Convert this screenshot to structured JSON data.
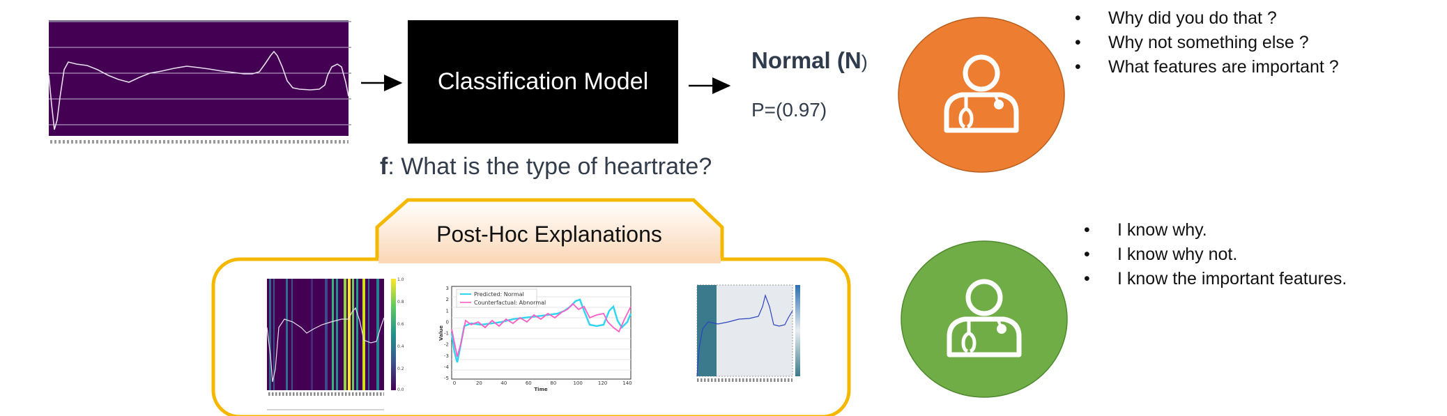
{
  "model": {
    "label": "Classification Model"
  },
  "prediction": {
    "class_name": "Normal (N",
    "class_close": ")",
    "probability": "P=(0.97)"
  },
  "question": {
    "prefix": "f",
    "text": ": What is the type of heartrate?"
  },
  "doctor_before": {
    "questions": [
      "Why did you do that ?",
      "Why not something else ?",
      "What features are important ?"
    ],
    "color": "#ed7d31"
  },
  "doctor_after": {
    "statements": [
      "I know why.",
      "I know why not.",
      "I know the important features."
    ],
    "color": "#70ad47"
  },
  "explanations": {
    "title": "Post-Hoc Explanations",
    "border_color": "#f5b800",
    "counterfactual_legend": [
      "Predicted: Normal",
      "Counterfactual: Abnormal"
    ],
    "counterfactual_xlabel": "Time",
    "counterfactual_ylabel": "Value",
    "counterfactual_xticks": [
      "0",
      "20",
      "40",
      "60",
      "80",
      "100",
      "120",
      "140"
    ],
    "counterfactual_yticks": [
      "3",
      "2",
      "1",
      "0",
      "-1",
      "-2",
      "-3",
      "-4",
      "-5"
    ]
  },
  "icons": [
    "arrow-right-icon",
    "doctor-icon",
    "stethoscope-icon"
  ],
  "bullet_glyph": "•"
}
